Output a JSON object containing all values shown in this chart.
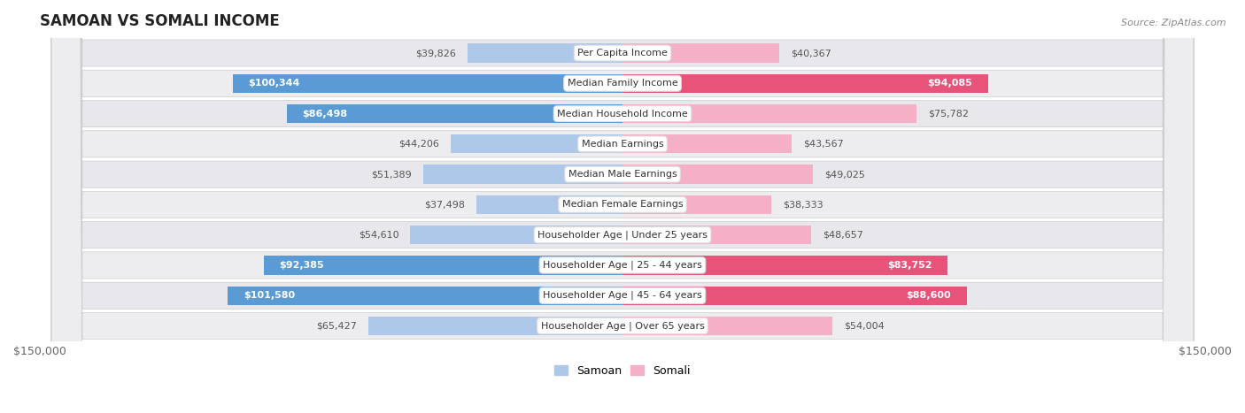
{
  "title": "SAMOAN VS SOMALI INCOME",
  "source": "Source: ZipAtlas.com",
  "categories": [
    "Per Capita Income",
    "Median Family Income",
    "Median Household Income",
    "Median Earnings",
    "Median Male Earnings",
    "Median Female Earnings",
    "Householder Age | Under 25 years",
    "Householder Age | 25 - 44 years",
    "Householder Age | 45 - 64 years",
    "Householder Age | Over 65 years"
  ],
  "samoan_values": [
    39826,
    100344,
    86498,
    44206,
    51389,
    37498,
    54610,
    92385,
    101580,
    65427
  ],
  "somali_values": [
    40367,
    94085,
    75782,
    43567,
    49025,
    38333,
    48657,
    83752,
    88600,
    54004
  ],
  "max_value": 150000,
  "samoan_color_light": "#adc8e8",
  "samoan_color_dark": "#5b9bd5",
  "somali_color_light": "#f5b0c8",
  "somali_color_dark": "#e8537a",
  "label_threshold_samoan": 80000,
  "label_threshold_somali": 80000,
  "row_bg_color": "#e8e8ec",
  "row_bg_color2": "#ededf0",
  "title_color": "#222222",
  "source_color": "#888888",
  "label_outside_color": "#555555",
  "label_inside_color": "#ffffff",
  "legend_samoan": "Samoan",
  "legend_somali": "Somali"
}
